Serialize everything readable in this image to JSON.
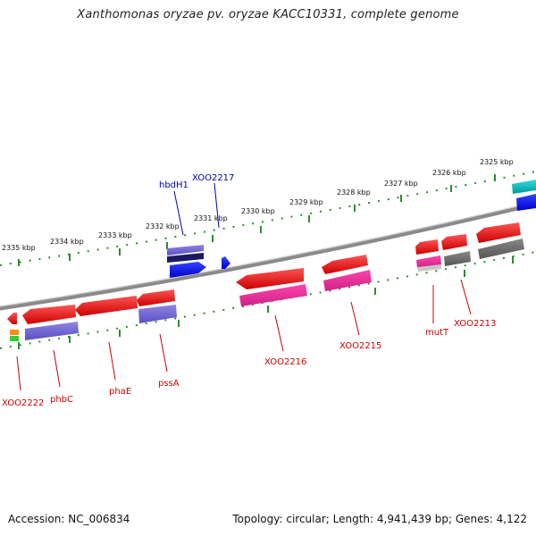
{
  "title": "Xanthomonas oryzae pv. oryzae KACC10331, complete genome",
  "footer": {
    "accession": "Accession: NC_006834",
    "topology": "Topology: circular; Length: 4,941,439 bp; Genes: 4,122"
  },
  "colors": {
    "backbone": "#8a8a8a",
    "ticks": "#2e8b2e",
    "gene_label_red": "#cc0000",
    "gene_label_blue": "#0000aa"
  },
  "scale": {
    "unit": "kbp",
    "labels": [
      "2325 kbp",
      "2326 kbp",
      "2327 kbp",
      "2328 kbp",
      "2329 kbp",
      "2330 kbp",
      "2331 kbp",
      "2332 kbp",
      "2333 kbp",
      "2334 kbp",
      "2335 kbp"
    ]
  },
  "gene_labels": [
    {
      "name": "XOO2222",
      "color": "red"
    },
    {
      "name": "phbC",
      "color": "red"
    },
    {
      "name": "phaE",
      "color": "red"
    },
    {
      "name": "pssA",
      "color": "red"
    },
    {
      "name": "XOO2216",
      "color": "red"
    },
    {
      "name": "XOO2215",
      "color": "red"
    },
    {
      "name": "mutT",
      "color": "red"
    },
    {
      "name": "XOO2213",
      "color": "red"
    },
    {
      "name": "hbdH1",
      "color": "blue"
    },
    {
      "name": "XOO2217",
      "color": "blue"
    }
  ]
}
